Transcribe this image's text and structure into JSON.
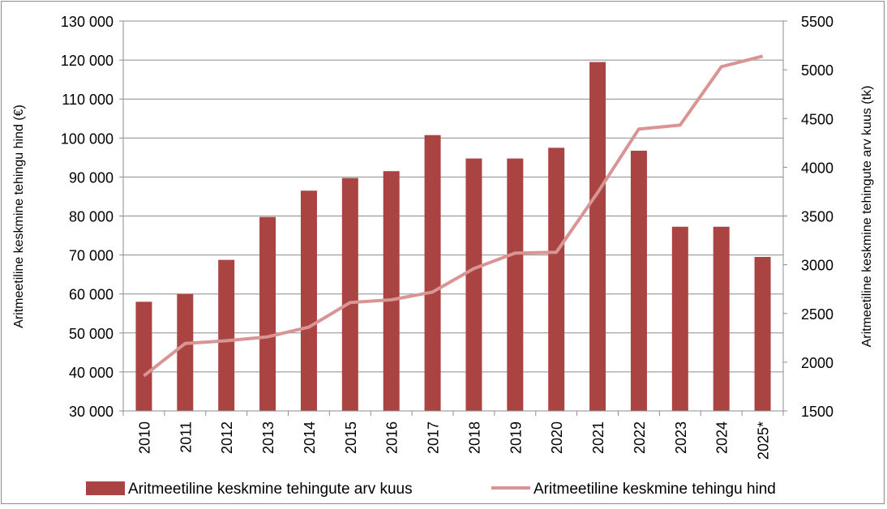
{
  "chart_data": {
    "type": "bar",
    "categories": [
      "2010",
      "2011",
      "2012",
      "2013",
      "2014",
      "2015",
      "2016",
      "2017",
      "2018",
      "2019",
      "2020",
      "2021",
      "2022",
      "2023",
      "2024",
      "2025*"
    ],
    "series": [
      {
        "name": "Aritmeetiline keskmine tehingute arv kuus",
        "chart_kind": "bar",
        "axis": "right",
        "color": "#a94442",
        "values": [
          2620,
          2700,
          3050,
          3490,
          3760,
          3890,
          3960,
          4330,
          4090,
          4090,
          4200,
          5080,
          4170,
          3390,
          3390,
          3080
        ]
      },
      {
        "name": "Aritmeetiline keskmine tehingu hind",
        "chart_kind": "line",
        "axis": "left",
        "color": "#d99594",
        "values": [
          39000,
          47300,
          48000,
          49000,
          51500,
          57800,
          58500,
          60500,
          66500,
          70500,
          70700,
          86000,
          102300,
          103300,
          118300,
          121000
        ]
      }
    ],
    "y_left": {
      "label": "Aritmeetiline keskmine tehingu hind (€)",
      "min": 30000,
      "max": 130000,
      "step": 10000,
      "tick_labels": [
        "30 000",
        "40 000",
        "50 000",
        "60 000",
        "70 000",
        "80 000",
        "90 000",
        "100 000",
        "110 000",
        "120 000",
        "130 000"
      ]
    },
    "y_right": {
      "label": "Aritmeetiline keskmine tehingute arv kuus (tk)",
      "min": 1500,
      "max": 5500,
      "step": 500,
      "tick_labels": [
        "1500",
        "2000",
        "2500",
        "3000",
        "3500",
        "4000",
        "4500",
        "5000",
        "5500"
      ]
    },
    "grid": true,
    "legend_position": "bottom"
  }
}
